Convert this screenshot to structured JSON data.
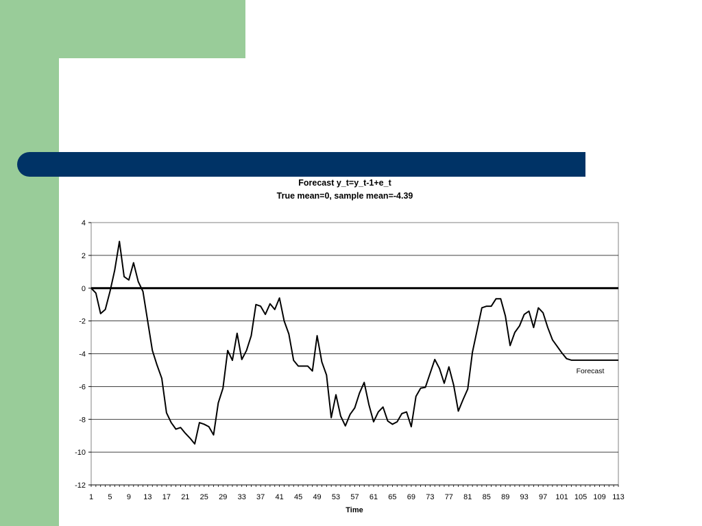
{
  "chart_data": {
    "type": "line",
    "title": "Forecast y_t=y_t-1+e_t",
    "subtitle": "True mean=0, sample mean=-4.39",
    "xlabel": "Time",
    "ylabel": "",
    "ylim": [
      -12,
      4
    ],
    "yticks": [
      4,
      2,
      0,
      -2,
      -4,
      -6,
      -8,
      -10,
      -12
    ],
    "xlim": [
      1,
      113
    ],
    "xtick_labels": [
      "1",
      "5",
      "9",
      "13",
      "17",
      "21",
      "25",
      "29",
      "33",
      "37",
      "41",
      "45",
      "49",
      "53",
      "57",
      "61",
      "65",
      "69",
      "73",
      "77",
      "81",
      "85",
      "89",
      "93",
      "97",
      "101",
      "105",
      "109",
      "113"
    ],
    "grid": true,
    "legend": "none",
    "annotation": "Forecast",
    "series": [
      {
        "values": [
          0,
          -0.3,
          -1.55,
          -1.3,
          -0.2,
          1.1,
          2.85,
          0.7,
          0.5,
          1.55,
          0.4,
          -0.2,
          -2.0,
          -3.8,
          -4.7,
          -5.5,
          -7.6,
          -8.2,
          -8.6,
          -8.5,
          -8.85,
          -9.15,
          -9.5,
          -8.2,
          -8.3,
          -8.45,
          -8.95,
          -7.0,
          -6.1,
          -3.8,
          -4.4,
          -2.75,
          -4.35,
          -3.8,
          -2.9,
          -1.0,
          -1.1,
          -1.6,
          -0.95,
          -1.3,
          -0.6,
          -2.0,
          -2.8,
          -4.4,
          -4.75,
          -4.75,
          -4.75,
          -5.05,
          -2.9,
          -4.5,
          -5.3,
          -7.9,
          -6.5,
          -7.8,
          -8.4,
          -7.7,
          -7.3,
          -6.4,
          -5.75,
          -7.1,
          -8.15,
          -7.55,
          -7.25,
          -8.1,
          -8.3,
          -8.15,
          -7.65,
          -7.55,
          -8.45,
          -6.6,
          -6.1,
          -6.05,
          -5.2,
          -4.35,
          -4.9,
          -5.8,
          -4.8,
          -5.9,
          -7.5,
          -6.8,
          -6.15,
          -3.9,
          -2.55,
          -1.2,
          -1.1,
          -1.1,
          -0.65,
          -0.65,
          -1.7,
          -3.5,
          -2.7,
          -2.3,
          -1.6,
          -1.4,
          -2.4,
          -1.2,
          -1.5,
          -2.4,
          -3.15,
          -3.55,
          -3.95,
          -4.3,
          -4.39,
          -4.39,
          -4.39,
          -4.39,
          -4.39,
          -4.39,
          -4.39,
          -4.39,
          -4.39,
          -4.39,
          -4.39
        ],
        "color": "#000000"
      },
      {
        "values_constant": 0,
        "color": "#000000"
      }
    ]
  }
}
